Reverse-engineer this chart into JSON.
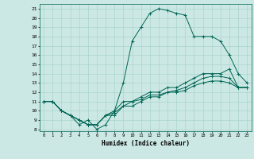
{
  "title": "",
  "xlabel": "Humidex (Indice chaleur)",
  "bg_color": "#cce8e4",
  "grid_color": "#aad4cc",
  "line_color": "#006655",
  "xlim": [
    -0.5,
    23.5
  ],
  "ylim": [
    7.8,
    21.5
  ],
  "xticks": [
    0,
    1,
    2,
    3,
    4,
    5,
    6,
    7,
    8,
    9,
    10,
    11,
    12,
    13,
    14,
    15,
    16,
    17,
    18,
    19,
    20,
    21,
    22,
    23
  ],
  "yticks": [
    8,
    9,
    10,
    11,
    12,
    13,
    14,
    15,
    16,
    17,
    18,
    19,
    20,
    21
  ],
  "series": [
    [
      11,
      11,
      10,
      9.5,
      8.5,
      9,
      8,
      8.5,
      10,
      13,
      17.5,
      19,
      20.5,
      21,
      20.8,
      20.5,
      20.3,
      18,
      18,
      18,
      17.5,
      16,
      14,
      13
    ],
    [
      11,
      11,
      10,
      9.5,
      9,
      8.5,
      8.5,
      9.5,
      10,
      11,
      11,
      11.5,
      12,
      12,
      12.5,
      12.5,
      13,
      13.5,
      14,
      14,
      14,
      14.5,
      12.5,
      12.5
    ],
    [
      11,
      11,
      10,
      9.5,
      9,
      8.5,
      8.5,
      9.5,
      9.8,
      10.5,
      11,
      11.2,
      11.7,
      11.7,
      12,
      12.2,
      12.5,
      13,
      13.5,
      13.7,
      13.7,
      13.5,
      12.5,
      12.5
    ],
    [
      11,
      11,
      10,
      9.5,
      9,
      8.5,
      8.5,
      9.5,
      9.5,
      10.5,
      10.5,
      11,
      11.5,
      11.5,
      12,
      12,
      12.2,
      12.7,
      13,
      13.2,
      13.2,
      13,
      12.5,
      12.5
    ]
  ]
}
